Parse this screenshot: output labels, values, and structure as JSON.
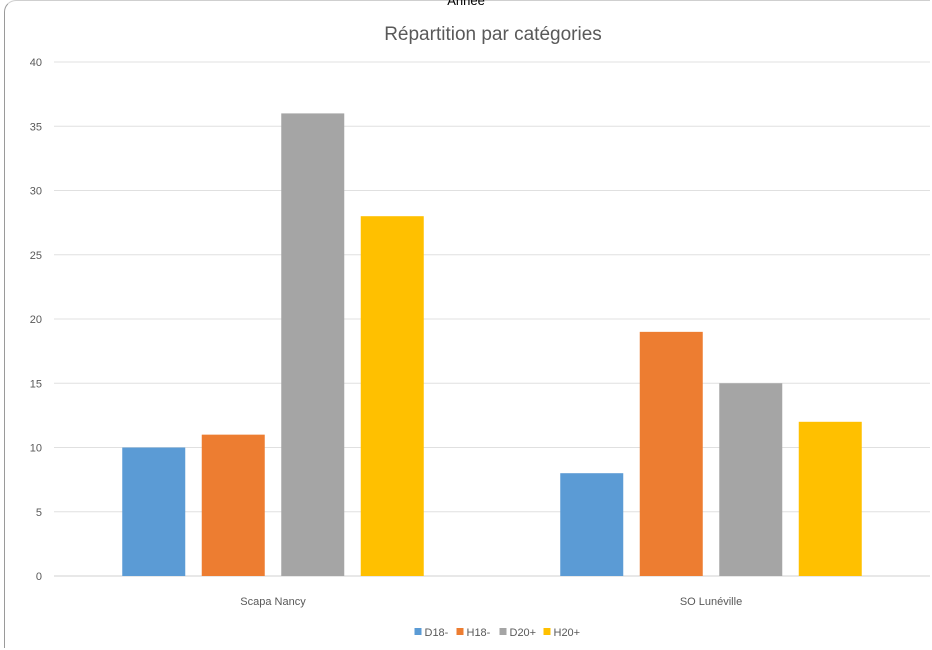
{
  "header": {
    "label": "Année"
  },
  "chart_data": {
    "type": "bar",
    "title": "Répartition par catégories",
    "categories": [
      "Scapa Nancy",
      "SO Lunéville"
    ],
    "series": [
      {
        "name": "D18-",
        "values": [
          10,
          8
        ],
        "color": "#5B9BD5"
      },
      {
        "name": "H18-",
        "values": [
          11,
          19
        ],
        "color": "#ED7D31"
      },
      {
        "name": "D20+",
        "values": [
          36,
          15
        ],
        "color": "#A5A5A5"
      },
      {
        "name": "H20+",
        "values": [
          28,
          12
        ],
        "color": "#FFC000"
      }
    ],
    "ylim": [
      0,
      40
    ],
    "yticks": [
      "0",
      "5",
      "10",
      "15",
      "20",
      "25",
      "30",
      "35",
      "40"
    ],
    "grid": true,
    "legend": "bottom"
  }
}
